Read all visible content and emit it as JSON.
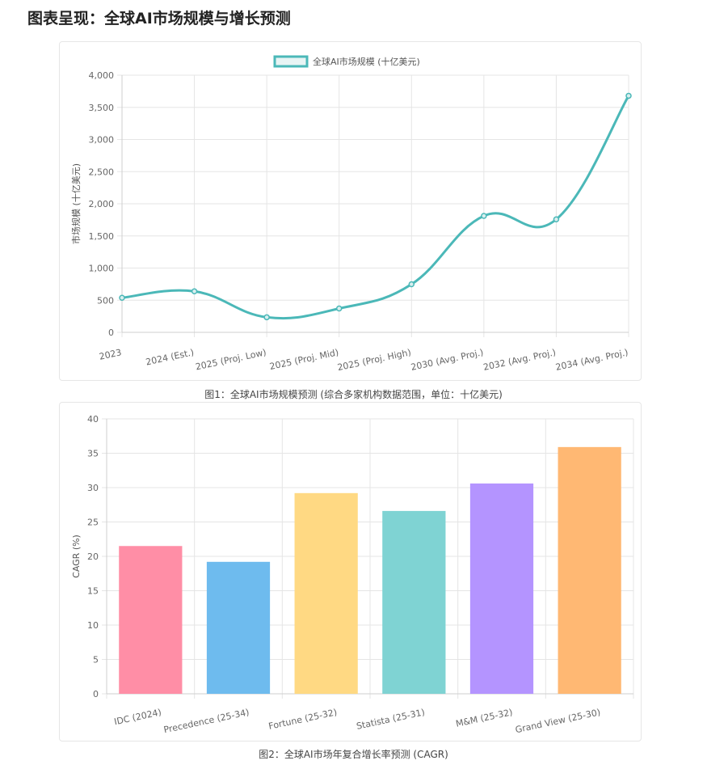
{
  "page": {
    "title": "图表呈现：全球AI市场规模与增长预测",
    "caption1": "图1：全球AI市场规模预测 (综合多家机构数据范围，单位：十亿美元)",
    "caption2": "图2：全球AI市场年复合增长率预测 (CAGR)"
  },
  "chart_data": [
    {
      "type": "line",
      "categories": [
        "2023",
        "2024 (Est.)",
        "2025 (Proj. Low)",
        "2025 (Proj. Mid)",
        "2025 (Proj. High)",
        "2030 (Avg. Proj.)",
        "2032 (Avg. Proj.)",
        "2034 (Avg. Proj.)"
      ],
      "series": [
        {
          "name": "全球AI市场规模 (十亿美元)",
          "values": [
            538,
            638,
            235,
            371,
            748,
            1811,
            1758,
            3680
          ],
          "color": "#4bb8b8"
        }
      ],
      "ylabel": "市场规模 (十亿美元)",
      "ylim": [
        0,
        4000
      ],
      "yticks": [
        0,
        500,
        1000,
        1500,
        2000,
        2500,
        3000,
        3500,
        4000
      ],
      "legend": "top-center",
      "grid": true
    },
    {
      "type": "bar",
      "categories": [
        "IDC (2024)",
        "Precedence (25-34)",
        "Fortune (25-32)",
        "Statista (25-31)",
        "M&M (25-32)",
        "Grand View (25-30)"
      ],
      "values": [
        21.5,
        19.2,
        29.2,
        26.6,
        30.6,
        35.9
      ],
      "colors": [
        "#ff8ea6",
        "#6ebbee",
        "#ffd983",
        "#7fd3d3",
        "#b494ff",
        "#ffb873"
      ],
      "ylabel": "CAGR (%)",
      "ylim": [
        0,
        40
      ],
      "yticks": [
        0,
        5,
        10,
        15,
        20,
        25,
        30,
        35,
        40
      ],
      "grid": true
    }
  ]
}
